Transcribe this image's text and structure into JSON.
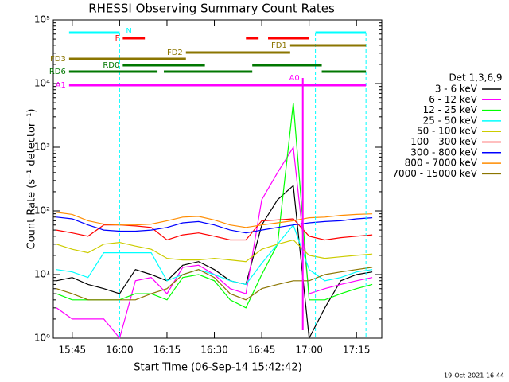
{
  "chart_data": {
    "type": "line",
    "title": "RHESSI Observing Summary Count Rates",
    "x_label": "Start Time (06-Sep-14 15:42:42)",
    "y_label": "Count Rate (s⁻¹ detector⁻¹)",
    "legend_title": "Det 1,3,6,9",
    "footer": "19-Oct-2021 16:44",
    "log_y": true,
    "legend": "right",
    "xlim": [
      "15:39",
      "17:23"
    ],
    "xticks": [
      "15:45",
      "16:00",
      "16:15",
      "16:30",
      "16:45",
      "17:00",
      "17:15"
    ],
    "ylim": [
      1,
      100000
    ],
    "yticks": [
      {
        "value": 1,
        "label": "10⁰"
      },
      {
        "value": 10,
        "label": "10¹"
      },
      {
        "value": 100,
        "label": "10²"
      },
      {
        "value": 1000,
        "label": "10³"
      },
      {
        "value": 10000,
        "label": "10⁴"
      },
      {
        "value": 100000,
        "label": "10⁵"
      }
    ],
    "x": [
      "15:40",
      "15:45",
      "15:50",
      "15:55",
      "16:00",
      "16:05",
      "16:10",
      "16:15",
      "16:20",
      "16:25",
      "16:30",
      "16:35",
      "16:40",
      "16:45",
      "16:50",
      "16:55",
      "17:00",
      "17:05",
      "17:10",
      "17:15",
      "17:20"
    ],
    "series": [
      {
        "name": "3 - 6 keV",
        "color": "#000000",
        "values": [
          8,
          9,
          7,
          6,
          5,
          12,
          10,
          8,
          14,
          16,
          12,
          8,
          7,
          60,
          150,
          250,
          1,
          3,
          8,
          10,
          11
        ]
      },
      {
        "name": "6 - 12 keV",
        "color": "#ff00ff",
        "values": [
          3,
          2,
          2,
          2,
          1,
          8,
          9,
          5,
          13,
          14,
          10,
          6,
          5,
          150,
          400,
          1000,
          5,
          6,
          7,
          8,
          9
        ]
      },
      {
        "name": "12 - 25 keV",
        "color": "#00ff00",
        "values": [
          5,
          4,
          4,
          4,
          4,
          5,
          5,
          4,
          9,
          10,
          8,
          4,
          3,
          10,
          30,
          5000,
          4,
          4,
          5,
          6,
          7
        ]
      },
      {
        "name": "25 - 50 keV",
        "color": "#00ffff",
        "values": [
          12,
          11,
          9,
          22,
          22,
          22,
          22,
          8,
          10,
          12,
          10,
          8,
          7,
          15,
          30,
          60,
          12,
          8,
          9,
          11,
          12
        ]
      },
      {
        "name": "50 - 100 keV",
        "color": "#cccc00",
        "values": [
          30,
          25,
          22,
          30,
          32,
          28,
          25,
          18,
          17,
          17,
          18,
          17,
          16,
          25,
          30,
          35,
          20,
          18,
          19,
          20,
          21
        ]
      },
      {
        "name": "100 - 300 keV",
        "color": "#ff0000",
        "values": [
          50,
          45,
          40,
          60,
          60,
          58,
          55,
          35,
          42,
          45,
          40,
          35,
          35,
          70,
          72,
          75,
          40,
          35,
          38,
          40,
          42
        ]
      },
      {
        "name": "300 - 800 keV",
        "color": "#0000ff",
        "values": [
          80,
          75,
          60,
          50,
          48,
          48,
          50,
          55,
          65,
          68,
          60,
          50,
          45,
          50,
          55,
          60,
          65,
          68,
          70,
          75,
          78
        ]
      },
      {
        "name": "800 - 7000 keV",
        "color": "#ff8c00",
        "values": [
          95,
          88,
          70,
          62,
          60,
          60,
          62,
          70,
          80,
          82,
          72,
          60,
          55,
          60,
          65,
          70,
          78,
          80,
          85,
          88,
          90
        ]
      },
      {
        "name": "7000 - 15000 keV",
        "color": "#8b7500",
        "values": [
          6,
          5,
          4,
          4,
          4,
          4,
          5,
          6,
          10,
          12,
          9,
          5,
          4,
          6,
          7,
          8,
          8,
          10,
          11,
          12,
          13
        ]
      }
    ],
    "flags": [
      {
        "label": "N",
        "color": "#00ffff",
        "segments": [
          [
            "15:44",
            "16:00"
          ],
          [
            "17:02",
            "17:18"
          ]
        ]
      },
      {
        "label": "F",
        "color": "#ff0000",
        "segments": [
          [
            "16:01",
            "16:08"
          ],
          [
            "16:40",
            "16:44"
          ],
          [
            "16:47",
            "17:00"
          ]
        ]
      },
      {
        "label": "FD1",
        "color": "#8b7500",
        "segments": [
          [
            "16:54",
            "17:18"
          ]
        ]
      },
      {
        "label": "FD2",
        "color": "#8b7500",
        "segments": [
          [
            "16:21",
            "16:54"
          ]
        ]
      },
      {
        "label": "FD3",
        "color": "#8b7500",
        "segments": [
          [
            "15:44",
            "16:21"
          ]
        ]
      },
      {
        "label": "RD0",
        "color": "#007700",
        "segments": [
          [
            "16:01",
            "16:27"
          ],
          [
            "16:42",
            "17:04"
          ]
        ]
      },
      {
        "label": "RD6",
        "color": "#007700",
        "segments": [
          [
            "15:44",
            "16:12"
          ],
          [
            "16:14",
            "16:42"
          ],
          [
            "17:04",
            "17:18"
          ]
        ]
      },
      {
        "label": "A0",
        "color": "#ff00ff",
        "segments": [
          [
            "16:58",
            "16:59"
          ]
        ]
      },
      {
        "label": "A1",
        "color": "#ff00ff",
        "segments": [
          [
            "15:44",
            "17:18"
          ]
        ]
      }
    ]
  }
}
